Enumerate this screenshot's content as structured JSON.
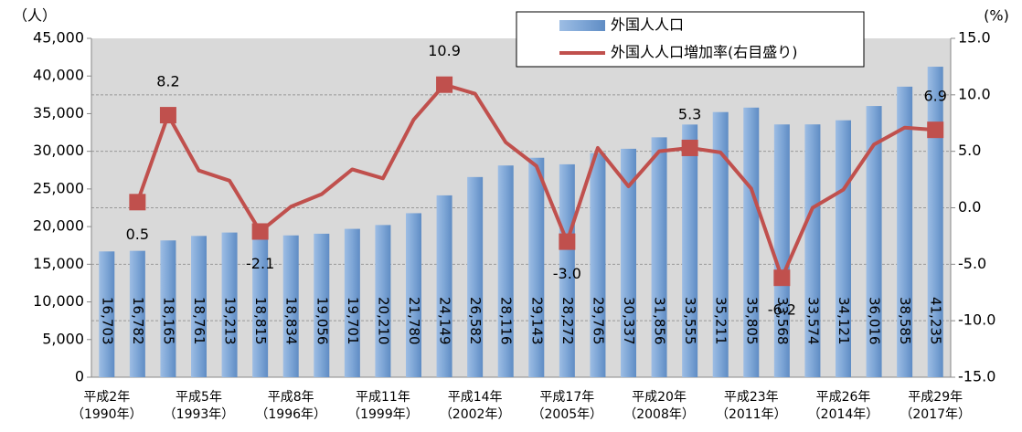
{
  "chart_data": {
    "type": "bar-line",
    "y_label": "（人）",
    "y2_label": "(%)",
    "categories": [
      "平成2年\n（1990年）",
      null,
      null,
      "平成5年\n（1993年）",
      null,
      null,
      "平成8年\n（1996年）",
      null,
      null,
      "平成11年\n（1999年）",
      null,
      null,
      "平成14年\n（2002年）",
      null,
      null,
      "平成17年\n（2005年）",
      null,
      null,
      "平成20年\n（2008年）",
      null,
      null,
      "平成23年\n（2011年）",
      null,
      null,
      "平成26年\n（2014年）",
      null,
      null,
      "平成29年\n（2017年）"
    ],
    "series": [
      {
        "name": "外国人人口",
        "type": "bar",
        "color": "#7ea6d6",
        "values": [
          16703,
          16782,
          18165,
          18761,
          19213,
          18815,
          18834,
          19056,
          19701,
          20210,
          21780,
          24149,
          26582,
          28116,
          29143,
          28272,
          29765,
          30337,
          31856,
          33555,
          35211,
          35805,
          33568,
          33574,
          34121,
          36016,
          38585,
          41235
        ],
        "value_labels": [
          "16,703",
          "16,782",
          "18,165",
          "18,761",
          "19,213",
          "18,815",
          "18,834",
          "19,056",
          "19,701",
          "20,210",
          "21,780",
          "24,149",
          "26,582",
          "28,116",
          "29,143",
          "28,272",
          "29,765",
          "30,337",
          "31,856",
          "33,555",
          "35,211",
          "35,805",
          "33,568",
          "33,574",
          "34,121",
          "36,016",
          "38,585",
          "41,235"
        ]
      },
      {
        "name": "外国人人口増加率(右目盛り)",
        "type": "line",
        "axis": "y2",
        "color": "#c0504d",
        "values": [
          null,
          0.5,
          8.2,
          3.3,
          2.4,
          -2.1,
          0.1,
          1.2,
          3.4,
          2.6,
          7.8,
          10.9,
          10.1,
          5.8,
          3.7,
          -3.0,
          5.3,
          1.9,
          5.0,
          5.3,
          4.9,
          1.7,
          -6.2,
          0.0,
          1.6,
          5.6,
          7.1,
          6.9
        ],
        "value_labels": [
          null,
          "0.5",
          "8.2",
          null,
          null,
          "-2.1",
          null,
          null,
          null,
          null,
          null,
          "10.9",
          null,
          null,
          null,
          "-3.0",
          null,
          null,
          null,
          "5.3",
          null,
          null,
          "-6.2",
          null,
          null,
          null,
          null,
          "6.9"
        ]
      }
    ],
    "ylim": [
      0,
      45000
    ],
    "yticks": [
      0,
      {
        "value": 5000,
        "label": "5,000"
      },
      {
        "value": 10000,
        "label": "10,000"
      },
      {
        "value": 15000,
        "label": "15,000"
      },
      {
        "value": 20000,
        "label": "20,000"
      },
      {
        "value": 25000,
        "label": "25,000"
      },
      {
        "value": 30000,
        "label": "30,000"
      },
      {
        "value": 35000,
        "label": "35,000"
      },
      {
        "value": 40000,
        "label": "40,000"
      },
      {
        "value": 45000,
        "label": "45,000"
      }
    ],
    "y2lim": [
      -15,
      15
    ],
    "y2ticks": [
      {
        "value": -15,
        "label": "-15.0"
      },
      {
        "value": -10,
        "label": "-10.0"
      },
      {
        "value": -5,
        "label": "-5.0"
      },
      {
        "value": 0,
        "label": "0.0"
      },
      {
        "value": 5,
        "label": "5.0"
      },
      {
        "value": 10,
        "label": "10.0"
      },
      {
        "value": 15,
        "label": "15.0"
      }
    ],
    "grid": "y2",
    "legend": "top-right"
  }
}
